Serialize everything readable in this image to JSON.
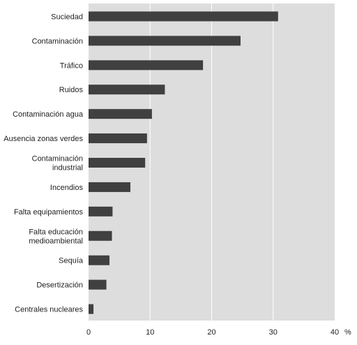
{
  "chart_data": {
    "type": "bar",
    "orientation": "horizontal",
    "categories": [
      [
        "Suciedad"
      ],
      [
        "Contaminación"
      ],
      [
        "Tráfico"
      ],
      [
        "Ruidos"
      ],
      [
        "Contaminación agua"
      ],
      [
        "Ausencia zonas verdes"
      ],
      [
        "Contaminación",
        "industrial"
      ],
      [
        "Incendios"
      ],
      [
        "Falta equipamientos"
      ],
      [
        "Falta educación",
        "medioambiental"
      ],
      [
        "Sequía"
      ],
      [
        "Desertización"
      ],
      [
        "Centrales nucleares"
      ]
    ],
    "values": [
      30.8,
      24.7,
      18.6,
      12.4,
      10.3,
      9.5,
      9.2,
      6.8,
      3.9,
      3.8,
      3.4,
      2.9,
      0.8
    ],
    "xlim": [
      0,
      40
    ],
    "xticks": [
      0,
      10,
      20,
      30,
      40
    ],
    "unit_label": "%",
    "grid": true,
    "legend": "none",
    "colors": {
      "plot_background": "#dddddd",
      "bar": "#404040",
      "gridline": "#ffffff",
      "text": "#222222"
    }
  }
}
